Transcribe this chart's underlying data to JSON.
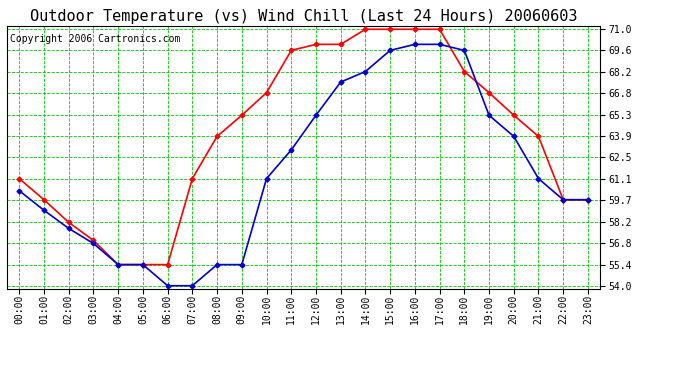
{
  "title": "Outdoor Temperature (vs) Wind Chill (Last 24 Hours) 20060603",
  "copyright": "Copyright 2006 Cartronics.com",
  "hours": [
    "00:00",
    "01:00",
    "02:00",
    "03:00",
    "04:00",
    "05:00",
    "06:00",
    "07:00",
    "08:00",
    "09:00",
    "10:00",
    "11:00",
    "12:00",
    "13:00",
    "14:00",
    "15:00",
    "16:00",
    "17:00",
    "18:00",
    "19:00",
    "20:00",
    "21:00",
    "22:00",
    "23:00"
  ],
  "temp": [
    61.1,
    59.7,
    58.2,
    57.0,
    55.4,
    55.4,
    55.4,
    61.1,
    63.9,
    65.3,
    66.8,
    69.6,
    70.0,
    70.0,
    71.0,
    71.0,
    71.0,
    71.0,
    68.2,
    66.8,
    65.3,
    63.9,
    59.7,
    59.7
  ],
  "windchill": [
    60.3,
    59.0,
    57.8,
    56.8,
    55.4,
    55.4,
    54.0,
    54.0,
    55.4,
    55.4,
    61.1,
    63.0,
    65.3,
    67.5,
    68.2,
    69.6,
    70.0,
    70.0,
    69.6,
    65.3,
    63.9,
    61.1,
    59.7,
    59.7
  ],
  "temp_color": "#ff0000",
  "windchill_color": "#0000cc",
  "grid_color": "#00cc00",
  "bg_color": "#ffffff",
  "plot_bg": "#ffffff",
  "ylim_min": 54.0,
  "ylim_max": 71.0,
  "yticks": [
    54.0,
    55.4,
    56.8,
    58.2,
    59.7,
    61.1,
    62.5,
    63.9,
    65.3,
    66.8,
    68.2,
    69.6,
    71.0
  ],
  "title_fontsize": 11,
  "copyright_fontsize": 7,
  "tick_fontsize": 7,
  "marker": "D",
  "marker_size": 2.5,
  "line_width": 1.2
}
